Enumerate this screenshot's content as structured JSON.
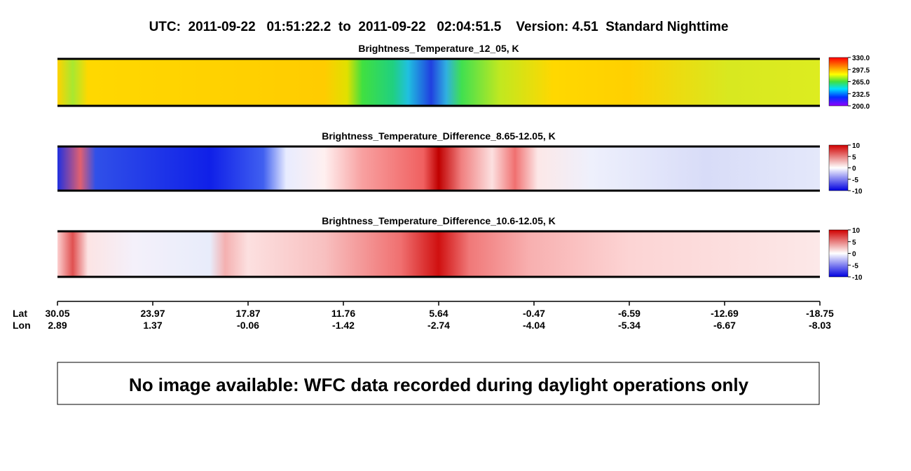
{
  "header": {
    "title": "UTC:  2011-09-22   01:51:22.2  to  2011-09-22   02:04:51.5    Version: 4.51  Standard Nighttime"
  },
  "panels": [
    {
      "title": "Brightness_Temperature_12_05, K",
      "colorbar": [
        "330.0",
        "297.5",
        "265.0",
        "232.5",
        "200.0"
      ]
    },
    {
      "title": "Brightness_Temperature_Difference_8.65-12.05, K",
      "colorbar": [
        "10",
        "5",
        "0",
        "-5",
        "-10"
      ]
    },
    {
      "title": "Brightness_Temperature_Difference_10.6-12.05, K",
      "colorbar": [
        "10",
        "5",
        "0",
        "-5",
        "-10"
      ]
    }
  ],
  "axis": {
    "lat_label": "Lat",
    "lon_label": "Lon",
    "lat": [
      "30.05",
      "23.97",
      "17.87",
      "11.76",
      "5.64",
      "-0.47",
      "-6.59",
      "-12.69",
      "-18.75"
    ],
    "lon": [
      "2.89",
      "1.37",
      "-0.06",
      "-1.42",
      "-2.74",
      "-4.04",
      "-5.34",
      "-6.67",
      "-8.03"
    ]
  },
  "message": "No image available: WFC data recorded during daylight operations only"
}
